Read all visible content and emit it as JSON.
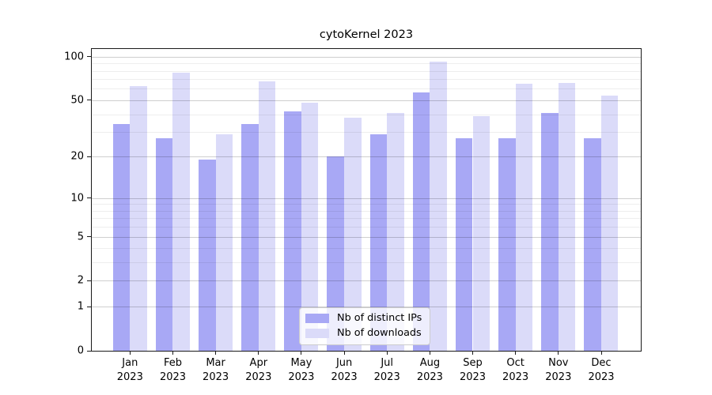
{
  "title": "cytoKernel 2023",
  "chart_data": {
    "type": "bar",
    "title": "cytoKernel 2023",
    "categories": [
      "Jan 2023",
      "Feb 2023",
      "Mar 2023",
      "Apr 2023",
      "May 2023",
      "Jun 2023",
      "Jul 2023",
      "Aug 2023",
      "Sep 2023",
      "Oct 2023",
      "Nov 2023",
      "Dec 2023"
    ],
    "x_months": [
      "Jan",
      "Feb",
      "Mar",
      "Apr",
      "May",
      "Jun",
      "Jul",
      "Aug",
      "Sep",
      "Oct",
      "Nov",
      "Dec"
    ],
    "x_year": "2023",
    "series": [
      {
        "name": "Nb of distinct IPs",
        "color": "#a8a8f5",
        "values": [
          34,
          27,
          19,
          34,
          42,
          20,
          29,
          57,
          27,
          27,
          41,
          27
        ]
      },
      {
        "name": "Nb of downloads",
        "color": "#dbdbf9",
        "values": [
          63,
          78,
          29,
          68,
          48,
          38,
          41,
          93,
          39,
          65,
          66,
          54
        ]
      }
    ],
    "xlabel": "",
    "ylabel": "",
    "yscale": "log1p",
    "ylim": [
      0,
      113
    ],
    "yticks": [
      0,
      1,
      2,
      5,
      10,
      20,
      50,
      100
    ],
    "yticks_minor": [
      3,
      4,
      6,
      7,
      8,
      9,
      30,
      40,
      60,
      70,
      80,
      90
    ],
    "grid": true,
    "grid_above_bars": true,
    "legend_position": "lower center"
  }
}
